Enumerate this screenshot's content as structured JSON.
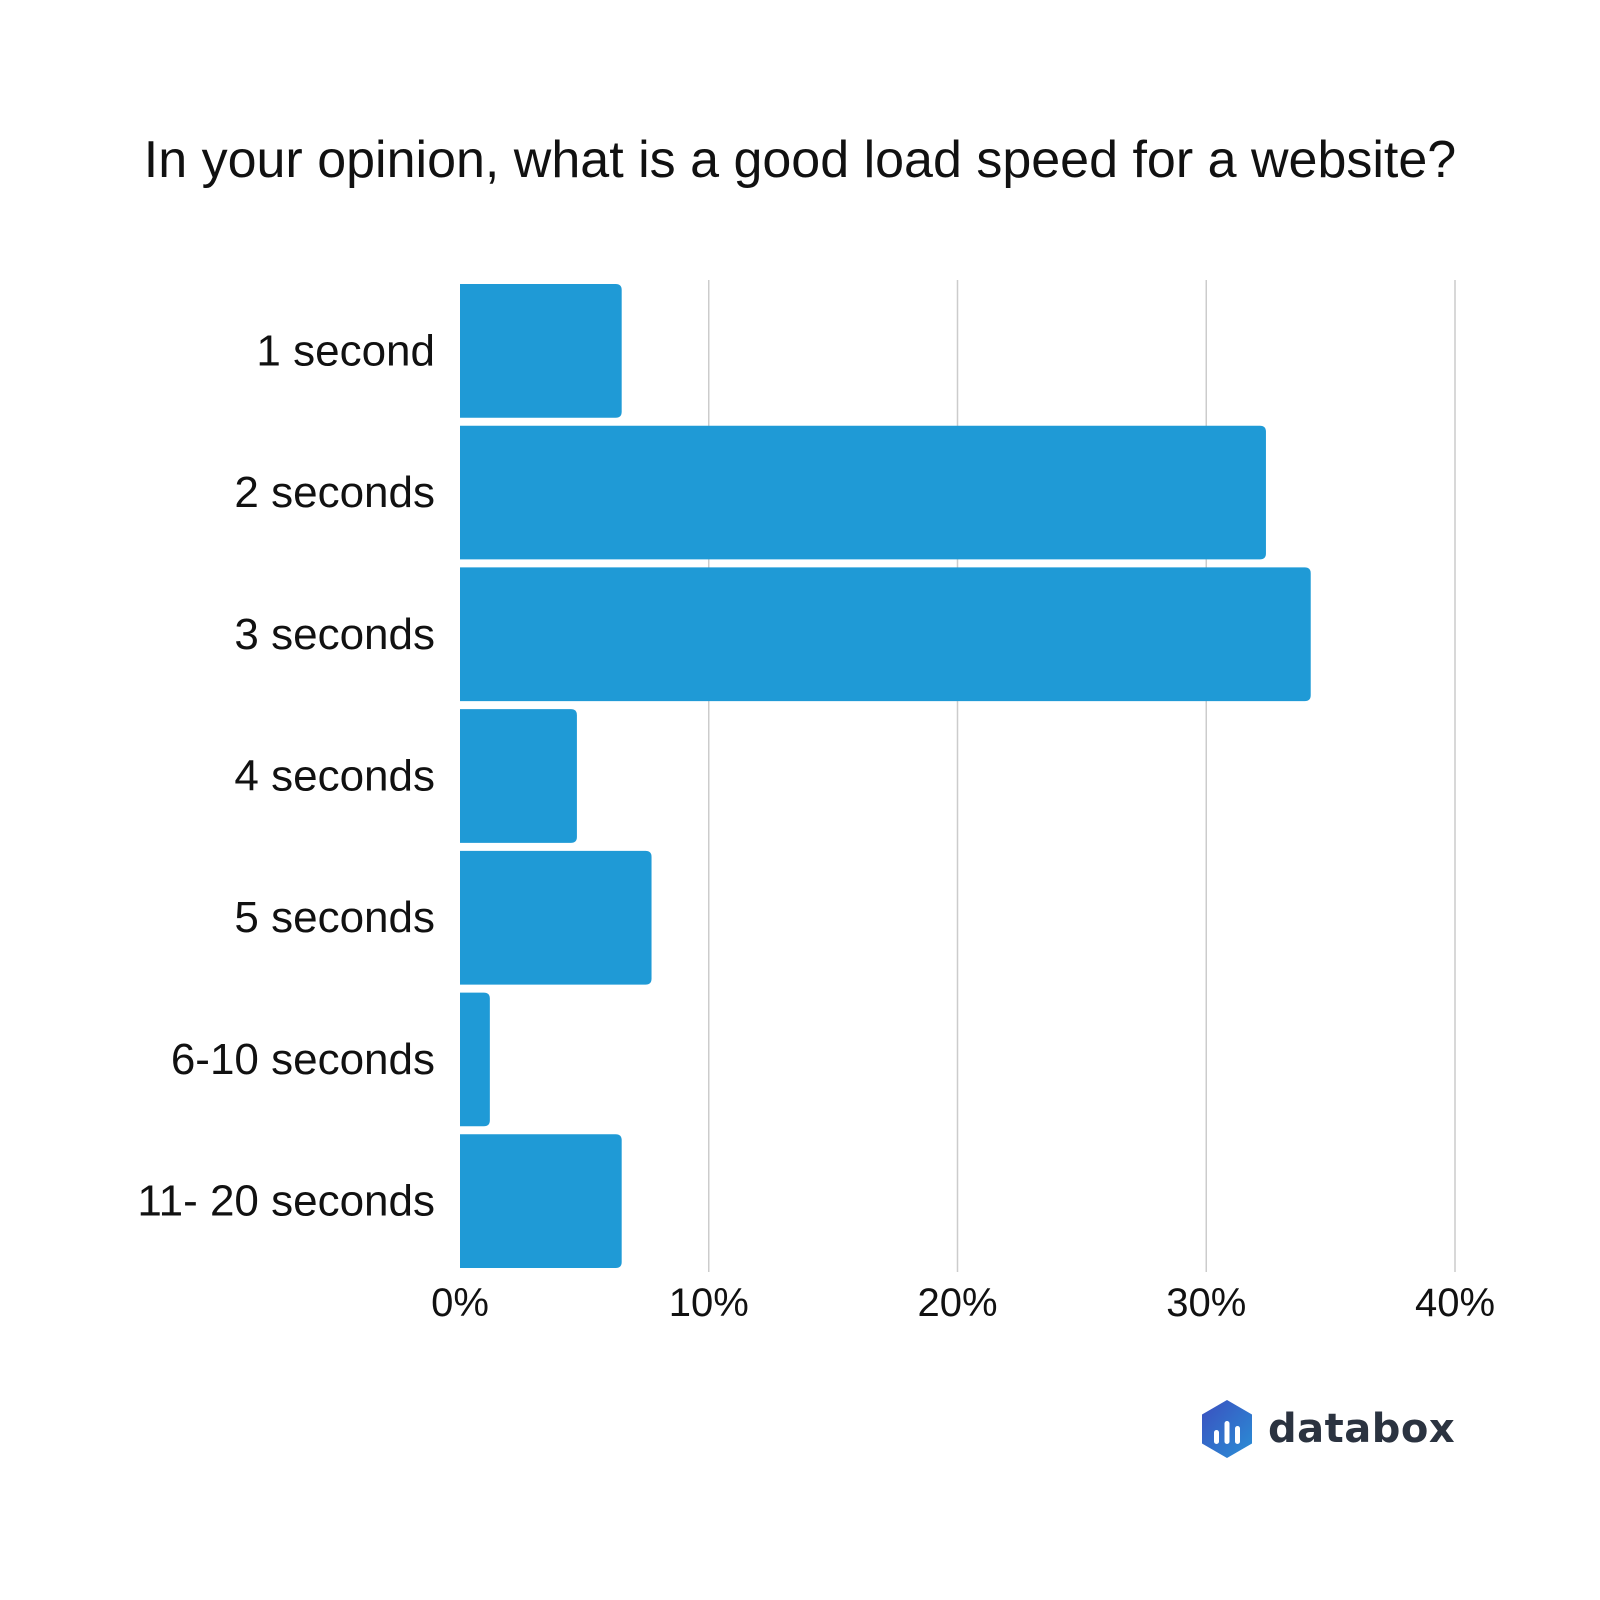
{
  "chart_data": {
    "type": "bar",
    "orientation": "horizontal",
    "title": "In your opinion, what is a good load speed for a website?",
    "xlabel": "",
    "ylabel": "",
    "categories": [
      "1 second",
      "2 seconds",
      "3 seconds",
      "4 seconds",
      "5 seconds",
      "6-10 seconds",
      "11- 20 seconds"
    ],
    "values": [
      6.5,
      32.4,
      34.2,
      4.7,
      7.7,
      1.2,
      6.5
    ],
    "value_unit": "%",
    "xlim": [
      0,
      40
    ],
    "x_ticks": [
      0,
      10,
      20,
      30,
      40
    ],
    "x_tick_labels": [
      "0%",
      "10%",
      "20%",
      "30%",
      "40%"
    ],
    "grid": true,
    "bar_color": "#1f9ad6",
    "grid_color": "#cccccc"
  },
  "brand": {
    "name": "databox",
    "mark_colors": [
      "#3b4fbf",
      "#2a8fd6"
    ]
  }
}
